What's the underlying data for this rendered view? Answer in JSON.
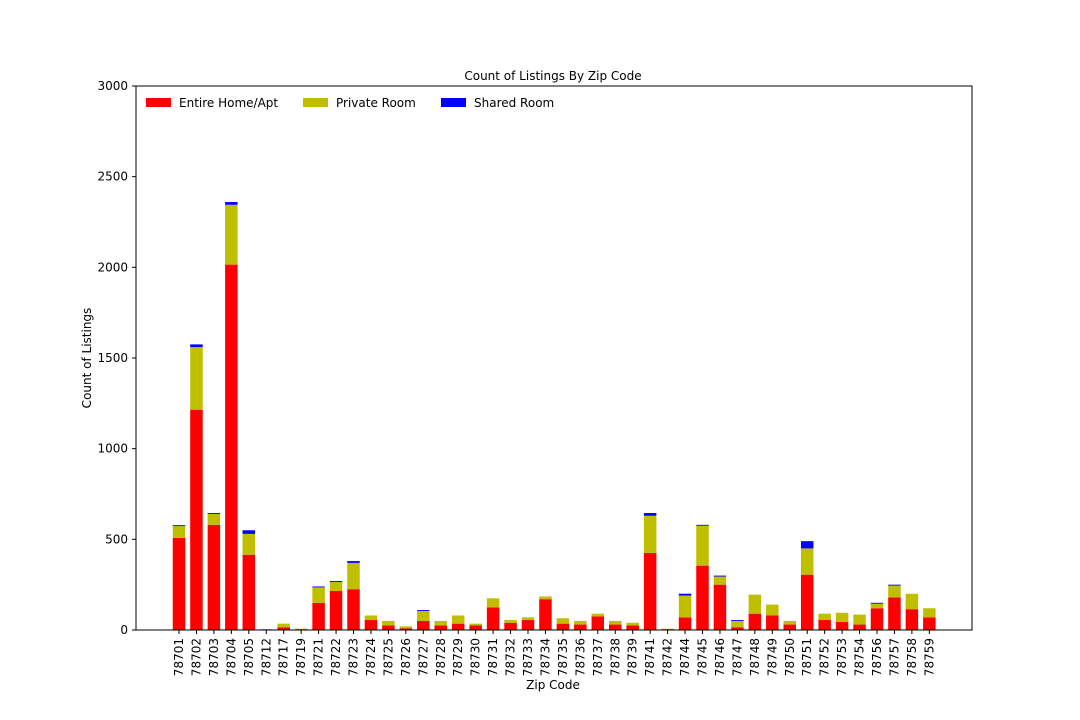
{
  "chart_data": {
    "type": "bar",
    "stacked": true,
    "title": "Count of Listings By Zip Code",
    "xlabel": "Zip Code",
    "ylabel": "Count of Listings",
    "ylim": [
      0,
      3000
    ],
    "yticks": [
      0,
      500,
      1000,
      1500,
      2000,
      2500,
      3000
    ],
    "legend_position": "top-left",
    "legend_columns": 3,
    "grid": false,
    "categories": [
      "78701",
      "78702",
      "78703",
      "78704",
      "78705",
      "78712",
      "78717",
      "78719",
      "78721",
      "78722",
      "78723",
      "78724",
      "78725",
      "78726",
      "78727",
      "78728",
      "78729",
      "78730",
      "78731",
      "78732",
      "78733",
      "78734",
      "78735",
      "78736",
      "78737",
      "78738",
      "78739",
      "78741",
      "78742",
      "78744",
      "78745",
      "78746",
      "78747",
      "78748",
      "78749",
      "78750",
      "78751",
      "78752",
      "78753",
      "78754",
      "78756",
      "78757",
      "78758",
      "78759"
    ],
    "series": [
      {
        "name": "Entire Home/Apt",
        "color": "#ff0000",
        "values": [
          508,
          1215,
          580,
          2015,
          415,
          2,
          15,
          5,
          150,
          215,
          225,
          55,
          25,
          10,
          50,
          25,
          35,
          25,
          125,
          40,
          55,
          170,
          35,
          30,
          75,
          30,
          25,
          425,
          5,
          70,
          355,
          250,
          15,
          90,
          80,
          30,
          305,
          55,
          45,
          30,
          120,
          180,
          115,
          70
        ]
      },
      {
        "name": "Private Room",
        "color": "#bfbf00",
        "values": [
          65,
          345,
          60,
          330,
          115,
          3,
          20,
          2,
          85,
          50,
          145,
          25,
          25,
          10,
          55,
          25,
          45,
          10,
          50,
          15,
          15,
          15,
          30,
          20,
          15,
          20,
          15,
          205,
          2,
          120,
          220,
          45,
          35,
          105,
          60,
          20,
          145,
          35,
          50,
          55,
          25,
          65,
          85,
          50
        ]
      },
      {
        "name": "Shared Room",
        "color": "#0000ff",
        "values": [
          5,
          15,
          5,
          15,
          20,
          0,
          0,
          0,
          5,
          5,
          10,
          0,
          0,
          0,
          5,
          0,
          0,
          0,
          0,
          0,
          0,
          0,
          0,
          0,
          0,
          0,
          0,
          15,
          0,
          10,
          5,
          5,
          5,
          0,
          0,
          0,
          40,
          0,
          0,
          0,
          5,
          5,
          0,
          0
        ]
      }
    ]
  }
}
